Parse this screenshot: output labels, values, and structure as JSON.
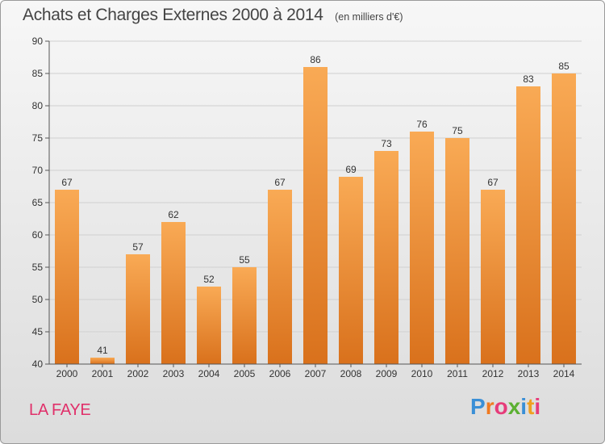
{
  "header": {
    "title": "Achats et Charges Externes 2000 à 2014",
    "unit": "(en milliers d'€)"
  },
  "commune": "LA FAYE",
  "logo": {
    "text": "Proxiti",
    "letter_colors": [
      "#3a8fd6",
      "#f07a20",
      "#e63c7a",
      "#5bb032",
      "#3a8fd6",
      "#f0a020",
      "#e63c7a"
    ]
  },
  "colors": {
    "bar_light": "#f9aa55",
    "bar_dark": "#d9711c",
    "grid": "#d0d0d0",
    "axis": "#555555",
    "commune_text": "#e0306a"
  },
  "chart_data": {
    "type": "bar",
    "title": "Achats et Charges Externes 2000 à 2014",
    "subtitle": "(en milliers d'€)",
    "xlabel": "",
    "ylabel": "",
    "categories": [
      "2000",
      "2001",
      "2002",
      "2003",
      "2004",
      "2005",
      "2006",
      "2007",
      "2008",
      "2009",
      "2010",
      "2011",
      "2012",
      "2013",
      "2014"
    ],
    "values": [
      67,
      41,
      57,
      62,
      52,
      55,
      67,
      86,
      69,
      73,
      76,
      75,
      67,
      83,
      85
    ],
    "ylim": [
      40,
      90
    ],
    "yticks": [
      40,
      45,
      50,
      55,
      60,
      65,
      70,
      75,
      80,
      85,
      90
    ],
    "grid": true,
    "legend": "none"
  }
}
